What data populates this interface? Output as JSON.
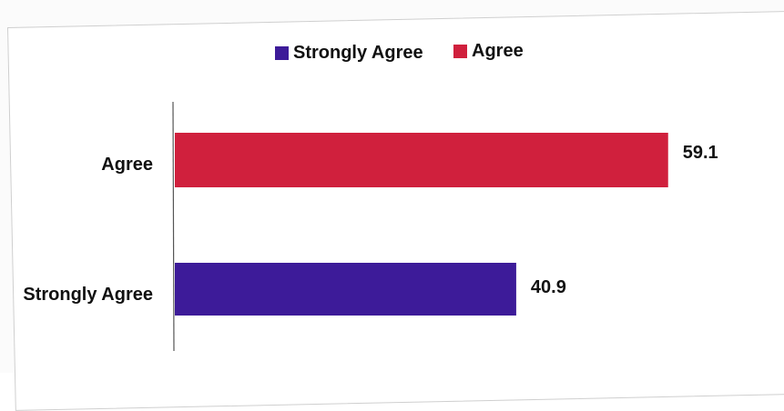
{
  "chart_data": {
    "type": "bar",
    "orientation": "horizontal",
    "categories": [
      "Agree",
      "Strongly Agree"
    ],
    "values": [
      59.1,
      40.9
    ],
    "data_labels": [
      "59.1",
      "40.9"
    ],
    "colors": [
      "#d0203d",
      "#3d1b99"
    ],
    "legend": {
      "placement": "top",
      "entries": [
        {
          "name": "Strongly Agree",
          "color": "#3d1b99"
        },
        {
          "name": "Agree",
          "color": "#d0203d"
        }
      ]
    },
    "xlim": [
      0,
      66
    ],
    "grid": false
  }
}
